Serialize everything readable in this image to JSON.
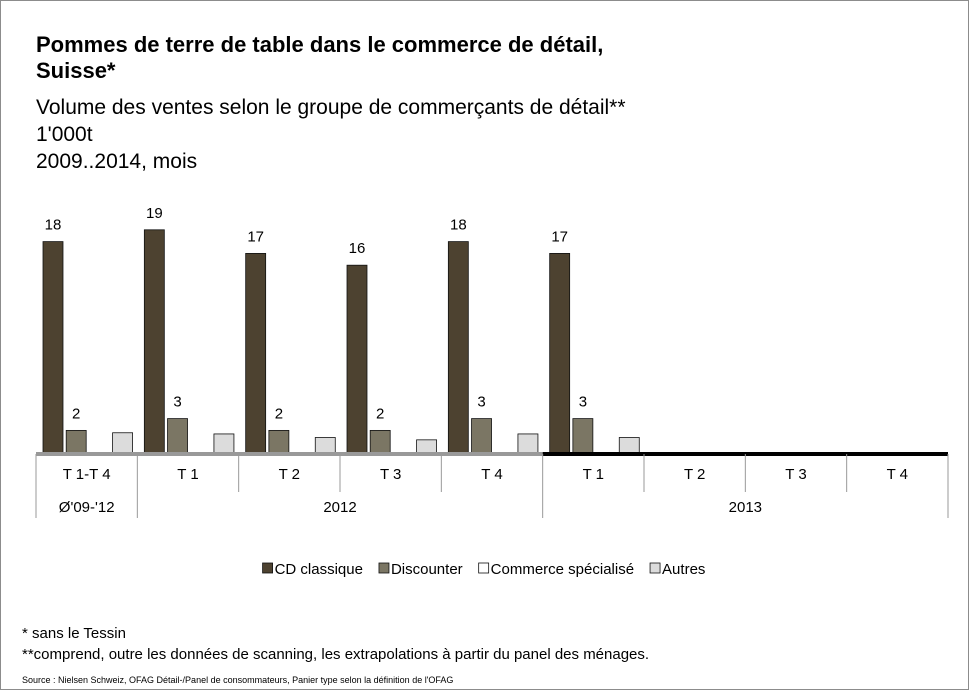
{
  "chart_data": {
    "type": "bar",
    "title": [
      "Pommes de terre de table dans le commerce de détail,",
      "Suisse*"
    ],
    "subtitle": [
      "Volume des ventes selon le groupe de commerçants de détail**",
      "1'000t",
      "2009..2014, mois"
    ],
    "categories": [
      "T 1-T 4",
      "T 1",
      "T 2",
      "T 3",
      "T 4",
      "T 1",
      "T 2",
      "T 3",
      "T 4"
    ],
    "groups": [
      {
        "label": "Ø'09-'12",
        "size": 1
      },
      {
        "label": "2012",
        "size": 4
      },
      {
        "label": "2013",
        "size": 4
      }
    ],
    "series": [
      {
        "name": "CD classique",
        "color": "#4d4230",
        "show_labels": true,
        "values": [
          18,
          19,
          17,
          16,
          18,
          17,
          null,
          null,
          null
        ]
      },
      {
        "name": "Discounter",
        "color": "#7b7664",
        "show_labels": true,
        "values": [
          2,
          3,
          2,
          2,
          3,
          3,
          null,
          null,
          null
        ]
      },
      {
        "name": "Commerce spécialisé",
        "color": "#ffffff",
        "show_labels": false,
        "values": [
          0.1,
          0.1,
          0.1,
          0.1,
          0.1,
          0.1,
          null,
          null,
          null
        ]
      },
      {
        "name": "Autres",
        "color": "#dcdcdc",
        "show_labels": false,
        "values": [
          1.8,
          1.7,
          1.4,
          1.2,
          1.7,
          1.4,
          null,
          null,
          null
        ]
      }
    ],
    "ylim": [
      0,
      20
    ],
    "legend": "bottom",
    "footnotes": [
      "*  sans le Tessin",
      "**comprend, outre les données de scanning, les extrapolations à partir du panel des ménages."
    ],
    "source": "Source : Nielsen Schweiz, OFAG Détail-/Panel de consommateurs, Panier type selon la définition de l'OFAG"
  }
}
